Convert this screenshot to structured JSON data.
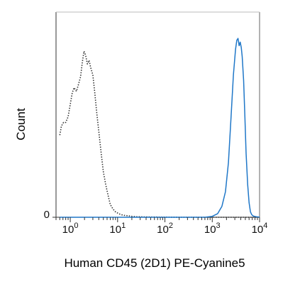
{
  "chart_data": {
    "type": "line",
    "xlabel": "Human CD45 (2D1) PE-Cyanine5",
    "ylabel": "Count",
    "x_scale": "log",
    "xlim": [
      0.5,
      10000
    ],
    "ylim": [
      0,
      100
    ],
    "x_ticks": [
      {
        "value": 1,
        "base": "10",
        "exp": "0"
      },
      {
        "value": 10,
        "base": "10",
        "exp": "1"
      },
      {
        "value": 100,
        "base": "10",
        "exp": "2"
      },
      {
        "value": 1000,
        "base": "10",
        "exp": "3"
      },
      {
        "value": 10000,
        "base": "10",
        "exp": "4"
      }
    ],
    "y_ticks": [
      {
        "value": 0,
        "label": "0"
      }
    ],
    "grid": false,
    "series": [
      {
        "style": "dotted",
        "color": "#333333",
        "x": [
          0.6,
          0.65,
          0.72,
          0.8,
          0.9,
          1.0,
          1.1,
          1.2,
          1.35,
          1.5,
          1.65,
          1.8,
          1.95,
          2.1,
          2.3,
          2.5,
          2.7,
          3.0,
          3.3,
          3.6,
          4.0,
          4.5,
          5.0,
          5.6,
          6.3,
          7.0,
          8.0,
          9.0,
          10.5,
          12.0,
          14.0,
          17.0,
          20.0,
          25.0,
          35.0,
          60.0,
          200.0,
          1000.0,
          10000.0
        ],
        "y": [
          45,
          50,
          52,
          52,
          55,
          62,
          68,
          71,
          69,
          73,
          77,
          85,
          91,
          89,
          84,
          86,
          82,
          78,
          68,
          58,
          47,
          35,
          25,
          18,
          12,
          7,
          4.5,
          3,
          2,
          1.4,
          1.0,
          0.8,
          0.5,
          0.3,
          0.2,
          0.1,
          0,
          0,
          0
        ]
      },
      {
        "style": "solid",
        "color": "#1f77c8",
        "x": [
          0.6,
          10,
          100,
          700,
          1000,
          1300,
          1600,
          1900,
          2200,
          2500,
          2800,
          3100,
          3300,
          3500,
          3700,
          3900,
          4100,
          4300,
          4600,
          4900,
          5200,
          5600,
          6000,
          6400,
          6800,
          7200,
          7800,
          8500,
          9200,
          10000
        ],
        "y": [
          0,
          0,
          0,
          0,
          0.5,
          2,
          6,
          14,
          30,
          55,
          78,
          92,
          97,
          98,
          94,
          96,
          93,
          88,
          75,
          55,
          35,
          18,
          8,
          3,
          1.5,
          0.8,
          0.5,
          0.3,
          0.2,
          0.1
        ]
      }
    ]
  }
}
